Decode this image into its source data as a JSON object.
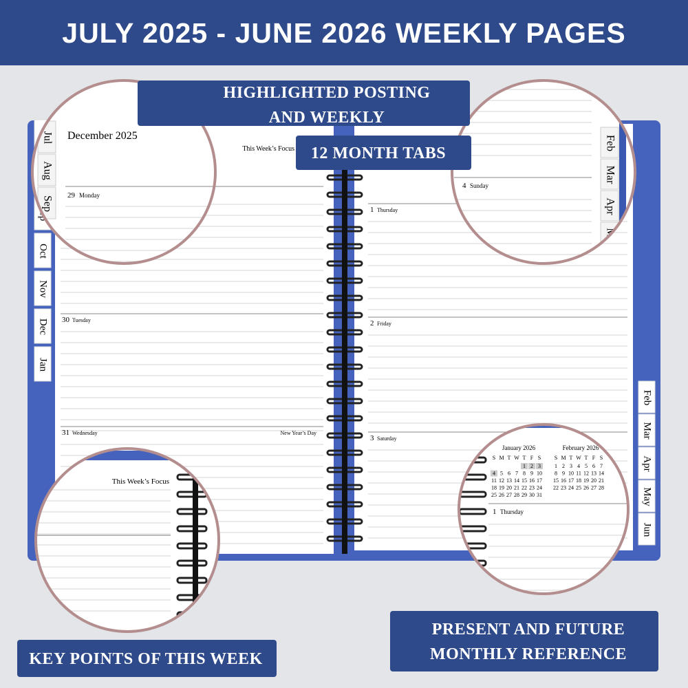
{
  "header": {
    "title": "JULY 2025 - JUNE 2026 WEEKLY PAGES"
  },
  "callouts": {
    "highlight": [
      "HIGHLIGHTED POSTING",
      "AND WEEKLY"
    ],
    "tabs": "12 MONTH TABS",
    "key_points": "KEY POINTS OF THIS WEEK",
    "reference": [
      "PRESENT AND FUTURE",
      "MONTHLY REFERENCE"
    ]
  },
  "left_tabs": [
    "Jul",
    "Aug",
    "Sep",
    "Oct",
    "Nov",
    "Dec",
    "Jan"
  ],
  "right_tabs": [
    "Feb",
    "Mar",
    "Apr",
    "May",
    "Jun"
  ],
  "left_page": {
    "month": "December 2025",
    "focus": "This Week’s Focus",
    "days": [
      {
        "num": "29",
        "name": "Monday"
      },
      {
        "num": "30",
        "name": "Tuesday"
      },
      {
        "num": "31",
        "name": "Wednesday",
        "note": "New Year’s Day"
      }
    ]
  },
  "right_page": {
    "days": [
      {
        "num": "1",
        "name": "Thursday"
      },
      {
        "num": "2",
        "name": "Friday"
      },
      {
        "num": "3",
        "name": "Saturday"
      },
      {
        "num": "4",
        "name": "Sunday"
      }
    ]
  },
  "calendars": [
    {
      "title": "January 2026",
      "weekdays": [
        "S",
        "M",
        "T",
        "W",
        "T",
        "F",
        "S"
      ],
      "weeks": [
        [
          null,
          null,
          null,
          null,
          1,
          2,
          3
        ],
        [
          4,
          5,
          6,
          7,
          8,
          9,
          10
        ],
        [
          11,
          12,
          13,
          14,
          15,
          16,
          17
        ],
        [
          18,
          19,
          20,
          21,
          22,
          23,
          24
        ],
        [
          25,
          26,
          27,
          28,
          29,
          30,
          31
        ]
      ]
    },
    {
      "title": "February 2026",
      "weekdays": [
        "S",
        "M",
        "T",
        "W",
        "T",
        "F",
        "S"
      ],
      "weeks": [
        [
          1,
          2,
          3,
          4,
          5,
          6,
          7
        ],
        [
          8,
          9,
          10,
          11,
          12,
          13,
          14
        ],
        [
          15,
          16,
          17,
          18,
          19,
          20,
          21
        ],
        [
          22,
          23,
          24,
          25,
          26,
          27,
          28
        ]
      ]
    }
  ]
}
